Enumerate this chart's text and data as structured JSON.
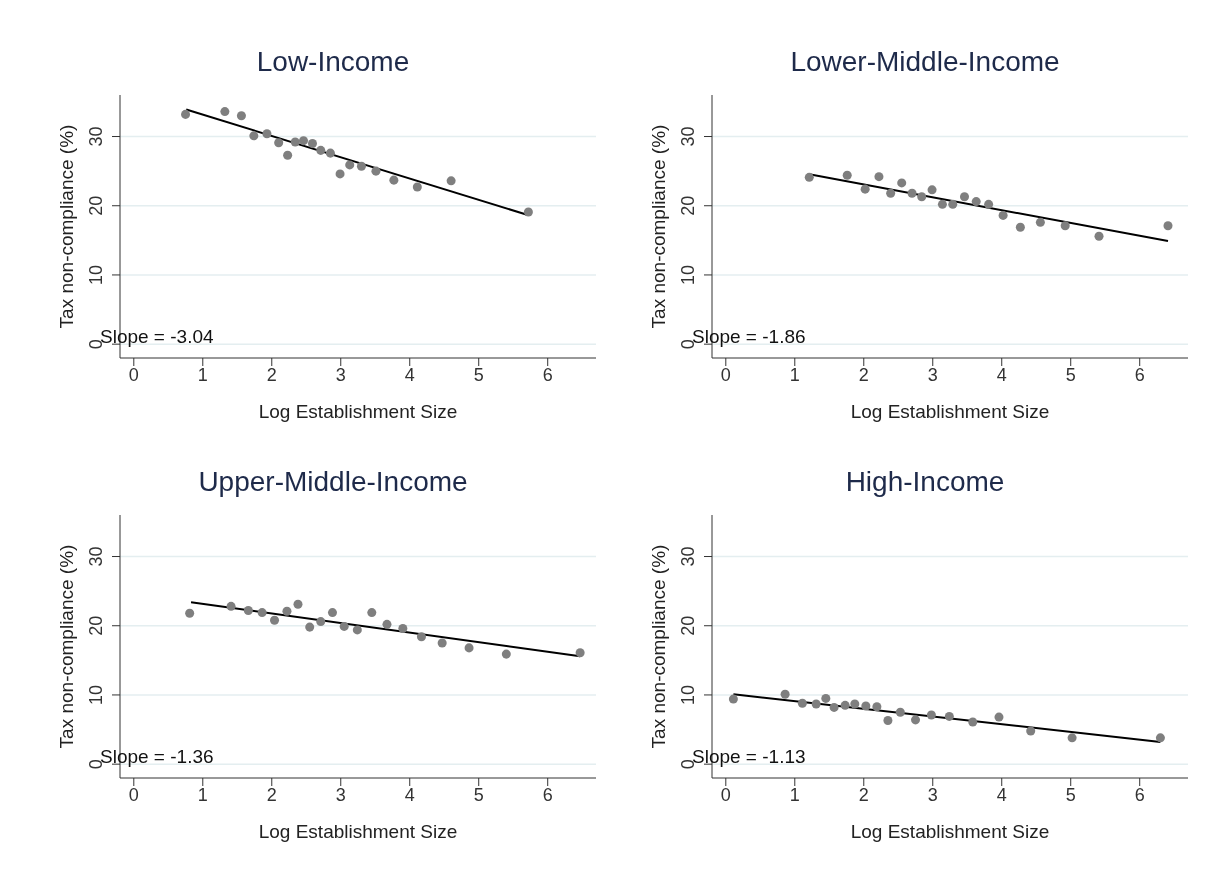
{
  "chart_data": [
    {
      "type": "scatter",
      "title": "Low-Income",
      "xlabel": "Log Establishment Size",
      "ylabel": "Tax non-compliance (%)",
      "xlim": [
        -0.2,
        6.7
      ],
      "ylim": [
        -2,
        36
      ],
      "xticks": [
        0,
        1,
        2,
        3,
        4,
        5,
        6
      ],
      "yticks": [
        0,
        10,
        20,
        30
      ],
      "grid": "y",
      "annotations": [
        "Slope = -3.04"
      ],
      "series": [
        {
          "marker": "circle",
          "color": "#7f7f7f",
          "x": [
            0.75,
            1.32,
            1.56,
            1.74,
            1.93,
            2.1,
            2.23,
            2.34,
            2.46,
            2.59,
            2.71,
            2.85,
            2.99,
            3.13,
            3.3,
            3.51,
            3.77,
            4.11,
            4.6,
            5.72
          ],
          "values": [
            33.2,
            33.6,
            33.0,
            30.1,
            30.4,
            29.1,
            27.3,
            29.2,
            29.4,
            29.0,
            28.0,
            27.6,
            24.6,
            25.9,
            25.7,
            25.0,
            23.7,
            22.7,
            23.6,
            19.1
          ]
        },
        {
          "type": "line",
          "color": "#000000",
          "x": [
            0.76,
            5.7
          ],
          "values": [
            33.9,
            18.7
          ]
        }
      ]
    },
    {
      "type": "scatter",
      "title": "Lower-Middle-Income",
      "xlabel": "Log Establishment Size",
      "ylabel": "Tax non-compliance (%)",
      "xlim": [
        -0.2,
        6.7
      ],
      "ylim": [
        -2,
        36
      ],
      "xticks": [
        0,
        1,
        2,
        3,
        4,
        5,
        6
      ],
      "yticks": [
        0,
        10,
        20,
        30
      ],
      "grid": "y",
      "annotations": [
        "Slope = -1.86"
      ],
      "series": [
        {
          "marker": "circle",
          "color": "#7f7f7f",
          "x": [
            1.21,
            1.76,
            2.02,
            2.22,
            2.39,
            2.55,
            2.7,
            2.84,
            2.99,
            3.14,
            3.29,
            3.46,
            3.63,
            3.81,
            4.02,
            4.27,
            4.56,
            4.92,
            5.41,
            6.41
          ],
          "values": [
            24.1,
            24.4,
            22.4,
            24.2,
            21.8,
            23.3,
            21.8,
            21.3,
            22.3,
            20.2,
            20.2,
            21.3,
            20.6,
            20.2,
            18.6,
            16.9,
            17.6,
            17.1,
            15.6,
            17.1
          ]
        },
        {
          "type": "line",
          "color": "#000000",
          "x": [
            1.23,
            6.41
          ],
          "values": [
            24.5,
            14.9
          ]
        }
      ]
    },
    {
      "type": "scatter",
      "title": "Upper-Middle-Income",
      "xlabel": "Log Establishment Size",
      "ylabel": "Tax non-compliance (%)",
      "xlim": [
        -0.2,
        6.7
      ],
      "ylim": [
        -2,
        36
      ],
      "xticks": [
        0,
        1,
        2,
        3,
        4,
        5,
        6
      ],
      "yticks": [
        0,
        10,
        20,
        30
      ],
      "grid": "y",
      "annotations": [
        "Slope = -1.36"
      ],
      "series": [
        {
          "marker": "circle",
          "color": "#7f7f7f",
          "x": [
            0.81,
            1.41,
            1.66,
            1.86,
            2.04,
            2.22,
            2.38,
            2.55,
            2.71,
            2.88,
            3.05,
            3.24,
            3.45,
            3.67,
            3.9,
            4.17,
            4.47,
            4.86,
            5.4,
            6.47
          ],
          "values": [
            21.8,
            22.8,
            22.2,
            21.9,
            20.8,
            22.1,
            23.1,
            19.8,
            20.6,
            21.9,
            19.9,
            19.4,
            21.9,
            20.2,
            19.6,
            18.4,
            17.5,
            16.8,
            15.9,
            16.1
          ]
        },
        {
          "type": "line",
          "color": "#000000",
          "x": [
            0.83,
            6.47
          ],
          "values": [
            23.4,
            15.6
          ]
        }
      ]
    },
    {
      "type": "scatter",
      "title": "High-Income",
      "xlabel": "Log Establishment Size",
      "ylabel": "Tax non-compliance (%)",
      "xlim": [
        -0.2,
        6.7
      ],
      "ylim": [
        -2,
        36
      ],
      "xticks": [
        0,
        1,
        2,
        3,
        4,
        5,
        6
      ],
      "yticks": [
        0,
        10,
        20,
        30
      ],
      "grid": "y",
      "annotations": [
        "Slope = -1.13"
      ],
      "series": [
        {
          "marker": "circle",
          "color": "#7f7f7f",
          "x": [
            0.11,
            0.86,
            1.11,
            1.31,
            1.45,
            1.57,
            1.73,
            1.87,
            2.03,
            2.19,
            2.35,
            2.53,
            2.75,
            2.98,
            3.24,
            3.58,
            3.96,
            4.42,
            5.02,
            6.3
          ],
          "values": [
            9.4,
            10.1,
            8.8,
            8.7,
            9.5,
            8.2,
            8.5,
            8.7,
            8.4,
            8.3,
            6.3,
            7.5,
            6.4,
            7.1,
            6.9,
            6.1,
            6.8,
            4.8,
            3.8,
            3.8
          ]
        },
        {
          "type": "line",
          "color": "#000000",
          "x": [
            0.11,
            6.3
          ],
          "values": [
            10.1,
            3.2
          ]
        }
      ]
    }
  ]
}
